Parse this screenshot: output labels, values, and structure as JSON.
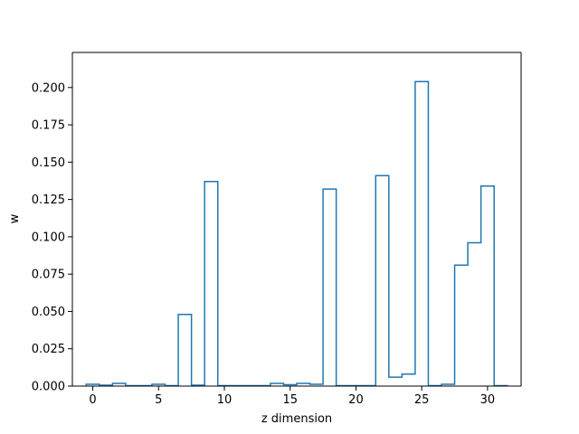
{
  "chart_data": {
    "type": "step",
    "title": "",
    "xlabel": "z dimension",
    "ylabel": "w",
    "xlim": [
      -1.55,
      32.55
    ],
    "ylim": [
      0,
      0.2235
    ],
    "grid": false,
    "legend": "none",
    "series_color": "#1f77b4",
    "x_ticks": [
      0,
      5,
      10,
      15,
      20,
      25,
      30
    ],
    "x_tick_labels": [
      "0",
      "5",
      "10",
      "15",
      "20",
      "25",
      "30"
    ],
    "y_ticks": [
      0,
      0.025,
      0.05,
      0.075,
      0.1,
      0.125,
      0.15,
      0.175,
      0.2
    ],
    "y_tick_labels": [
      "0.000",
      "0.025",
      "0.050",
      "0.075",
      "0.100",
      "0.125",
      "0.150",
      "0.175",
      "0.200"
    ],
    "x": [
      0,
      1,
      2,
      3,
      4,
      5,
      6,
      7,
      8,
      9,
      10,
      11,
      12,
      13,
      14,
      15,
      16,
      17,
      18,
      19,
      20,
      21,
      22,
      23,
      24,
      25,
      26,
      27,
      28,
      29,
      30,
      31
    ],
    "values": [
      0.0012,
      0.0006,
      0.0018,
      0.0003,
      0.0003,
      0.0012,
      0.0003,
      0.048,
      0.0006,
      0.137,
      0.0003,
      0.0003,
      0.0003,
      0.0003,
      0.0018,
      0.0009,
      0.0018,
      0.0012,
      0.132,
      0.0003,
      0.0003,
      0.0003,
      0.141,
      0.006,
      0.008,
      0.204,
      0.0003,
      0.0012,
      0.081,
      0.096,
      0.134,
      0.0003
    ]
  }
}
